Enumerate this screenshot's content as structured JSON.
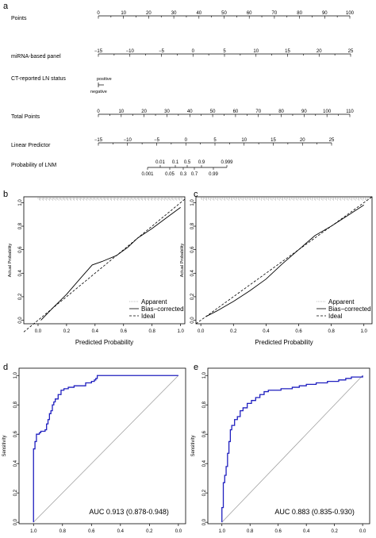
{
  "colors": {
    "roc": "#1f1fbf",
    "line": "#000000",
    "reference": "#999999",
    "apparent": "#aaaaaa"
  },
  "chart_data": [
    {
      "type": "nomogram",
      "panel_label": "a",
      "rows": [
        {
          "label": "Points",
          "ticks": [
            "0",
            "10",
            "20",
            "30",
            "40",
            "50",
            "60",
            "70",
            "80",
            "90",
            "100"
          ],
          "min": 0,
          "max": 100
        },
        {
          "label": "miRNA-based panel",
          "ticks": [
            "−15",
            "−10",
            "−5",
            "0",
            "5",
            "10",
            "15",
            "20",
            "25"
          ],
          "min": -15,
          "max": 25
        },
        {
          "label": "CT-reported LN status",
          "upper": "positive",
          "lower": "negative"
        },
        {
          "label": "Total Points",
          "ticks": [
            "0",
            "10",
            "20",
            "30",
            "40",
            "50",
            "60",
            "70",
            "80",
            "90",
            "100",
            "110"
          ],
          "min": 0,
          "max": 110
        },
        {
          "label": "Linear Predictor",
          "ticks": [
            "−15",
            "−10",
            "−5",
            "0",
            "5",
            "10",
            "15",
            "20",
            "25"
          ],
          "min": -15,
          "max": 25
        },
        {
          "label": "Probability of LNM",
          "ticks_top": [
            "0.01",
            "0.1",
            "0.5",
            "0.9",
            "0.999"
          ],
          "ticks_bottom": [
            "0.001",
            "0.05",
            "0.3",
            "0.7",
            "0.99"
          ]
        }
      ]
    },
    {
      "type": "line",
      "panel_label": "b",
      "xlabel": "Predicted Probability",
      "ylabel": "Actual Probability",
      "xlim": [
        -0.1,
        1.03
      ],
      "ylim": [
        -0.03,
        1.05
      ],
      "xticks": [
        "0.0",
        "0.2",
        "0.4",
        "0.6",
        "0.8",
        "1.0"
      ],
      "yticks": [
        "0.0",
        "0.2",
        "0.4",
        "0.6",
        "0.8",
        "1.0"
      ],
      "legend": [
        "Apparent",
        "Bias−corrected",
        "Ideal"
      ],
      "legend_position": "bottom-right",
      "series": [
        {
          "name": "Bias−corrected",
          "x": [
            0.02,
            0.1,
            0.2,
            0.3,
            0.38,
            0.45,
            0.55,
            0.63,
            0.7,
            0.8,
            0.9,
            1.0
          ],
          "y": [
            0.0,
            0.1,
            0.22,
            0.36,
            0.47,
            0.5,
            0.55,
            0.62,
            0.7,
            0.78,
            0.87,
            0.96
          ]
        },
        {
          "name": "Ideal",
          "x": [
            -0.1,
            1.03
          ],
          "y": [
            -0.1,
            1.03
          ]
        }
      ]
    },
    {
      "type": "line",
      "panel_label": "c",
      "xlabel": "Predicted Probability",
      "ylabel": "Actual Probability",
      "xlim": [
        -0.03,
        1.05
      ],
      "ylim": [
        -0.03,
        1.05
      ],
      "xticks": [
        "0.0",
        "0.2",
        "0.4",
        "0.6",
        "0.8",
        "1.0"
      ],
      "yticks": [
        "0.0",
        "0.2",
        "0.4",
        "0.6",
        "0.8",
        "1.0"
      ],
      "legend": [
        "Apparent",
        "Bias−corrected",
        "Ideal"
      ],
      "legend_position": "bottom-right",
      "series": [
        {
          "name": "Bias−corrected",
          "x": [
            0.03,
            0.1,
            0.2,
            0.3,
            0.4,
            0.5,
            0.6,
            0.7,
            0.8,
            0.9,
            1.0
          ],
          "y": [
            0.03,
            0.08,
            0.16,
            0.25,
            0.35,
            0.48,
            0.6,
            0.72,
            0.8,
            0.89,
            0.98
          ]
        },
        {
          "name": "Ideal",
          "x": [
            -0.03,
            1.05
          ],
          "y": [
            -0.03,
            1.05
          ]
        }
      ]
    },
    {
      "type": "line",
      "panel_label": "d",
      "xlabel": "Specificity",
      "ylabel": "Sensitivity",
      "xlim": [
        1.1,
        -0.05
      ],
      "ylim": [
        -0.01,
        1.05
      ],
      "xticks": [
        1.0,
        0.8,
        0.6,
        0.4,
        0.2,
        0.0
      ],
      "xtick_labels": [
        "1.0",
        "0.8",
        "0.6",
        "0.4",
        "0.2",
        "0.0"
      ],
      "yticks": [
        0.0,
        0.2,
        0.4,
        0.6,
        0.8,
        1.0
      ],
      "ytick_labels": [
        "0.0",
        "0.2",
        "0.4",
        "0.6",
        "0.8",
        "1.0"
      ],
      "annotation": "AUC 0.913 (0.878-0.948)",
      "series": [
        {
          "name": "ROC",
          "specificity": [
            1.0,
            1.0,
            0.99,
            0.99,
            0.98,
            0.98,
            0.96,
            0.95,
            0.92,
            0.91,
            0.9,
            0.89,
            0.88,
            0.87,
            0.86,
            0.85,
            0.83,
            0.81,
            0.79,
            0.76,
            0.72,
            0.68,
            0.64,
            0.6,
            0.58,
            0.57,
            0.56,
            0.5,
            0.4,
            0.3,
            0.2,
            0.1,
            0.0
          ],
          "sensitivity": [
            0.0,
            0.5,
            0.5,
            0.55,
            0.55,
            0.6,
            0.61,
            0.62,
            0.63,
            0.67,
            0.7,
            0.74,
            0.76,
            0.8,
            0.82,
            0.84,
            0.87,
            0.9,
            0.91,
            0.92,
            0.93,
            0.93,
            0.95,
            0.96,
            0.97,
            0.98,
            1.0,
            1.0,
            1.0,
            1.0,
            1.0,
            1.0,
            1.0
          ]
        },
        {
          "name": "Reference",
          "specificity": [
            1.0,
            0.0
          ],
          "sensitivity": [
            0.0,
            1.0
          ]
        }
      ]
    },
    {
      "type": "line",
      "panel_label": "e",
      "xlabel": "Specificity",
      "ylabel": "Sensitivity",
      "xlim": [
        1.1,
        -0.05
      ],
      "ylim": [
        -0.01,
        1.05
      ],
      "xticks": [
        1.0,
        0.8,
        0.6,
        0.4,
        0.2,
        0.0
      ],
      "xtick_labels": [
        "1.0",
        "0.8",
        "0.6",
        "0.4",
        "0.2",
        "0.0"
      ],
      "yticks": [
        0.0,
        0.2,
        0.4,
        0.6,
        0.8,
        1.0
      ],
      "ytick_labels": [
        "0.0",
        "0.2",
        "0.4",
        "0.6",
        "0.8",
        "1.0"
      ],
      "annotation": "AUC 0.883 (0.835-0.930)",
      "series": [
        {
          "name": "ROC",
          "specificity": [
            1.0,
            1.0,
            0.99,
            0.99,
            0.98,
            0.97,
            0.96,
            0.95,
            0.94,
            0.93,
            0.91,
            0.89,
            0.87,
            0.85,
            0.82,
            0.79,
            0.76,
            0.73,
            0.7,
            0.67,
            0.63,
            0.58,
            0.5,
            0.45,
            0.4,
            0.33,
            0.25,
            0.17,
            0.12,
            0.08,
            0.0
          ],
          "sensitivity": [
            0.0,
            0.1,
            0.15,
            0.27,
            0.32,
            0.38,
            0.47,
            0.55,
            0.63,
            0.66,
            0.7,
            0.72,
            0.76,
            0.78,
            0.81,
            0.83,
            0.85,
            0.87,
            0.89,
            0.9,
            0.9,
            0.91,
            0.92,
            0.93,
            0.94,
            0.95,
            0.96,
            0.97,
            0.98,
            0.99,
            1.0
          ]
        },
        {
          "name": "Reference",
          "specificity": [
            1.0,
            0.0
          ],
          "sensitivity": [
            0.0,
            1.0
          ]
        }
      ]
    }
  ]
}
